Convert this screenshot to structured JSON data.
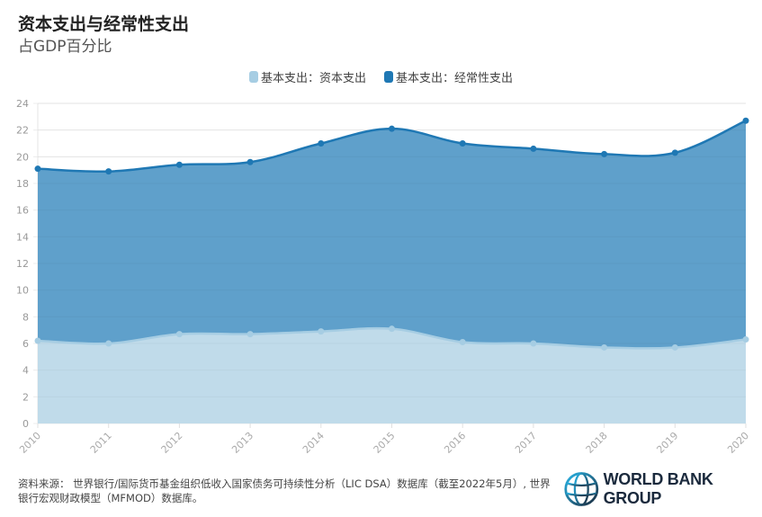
{
  "header": {
    "title": "资本支出与经常性支出",
    "subtitle": "占GDP百分比"
  },
  "legend": [
    {
      "label": "基本支出：资本支出",
      "color": "#a6cde3"
    },
    {
      "label": "基本支出：经常性支出",
      "color": "#1f78b4"
    }
  ],
  "footer": {
    "source_line1": "资料来源： 世界银行/国际货币基金组织低收入国家债务可持续性分析（LIC DSA）数据库（截至2022年5月）, 世界",
    "source_line2": "银行宏观财政模型（MFMOD）数据库。"
  },
  "logo": {
    "text": "WORLD BANK GROUP"
  },
  "chart_data": {
    "type": "area",
    "stacked": true,
    "title": "资本支出与经常性支出",
    "subtitle": "占GDP百分比",
    "xlabel": "",
    "ylabel": "",
    "x": [
      "2010",
      "2011",
      "2012",
      "2013",
      "2014",
      "2015",
      "2016",
      "2017",
      "2018",
      "2019",
      "2020"
    ],
    "series": [
      {
        "name": "基本支出：资本支出",
        "color": "#a6cde3",
        "values": [
          6.2,
          6.0,
          6.7,
          6.7,
          6.9,
          7.1,
          6.1,
          6.0,
          5.7,
          5.7,
          6.3
        ]
      },
      {
        "name": "基本支出：经常性支出",
        "color": "#1f78b4",
        "values": [
          12.9,
          12.9,
          12.7,
          12.9,
          14.1,
          15.0,
          14.9,
          14.6,
          14.5,
          14.6,
          16.4
        ]
      }
    ],
    "stack_totals": [
      19.1,
      18.9,
      19.4,
      19.6,
      21.0,
      22.1,
      21.0,
      20.6,
      20.2,
      20.3,
      22.7
    ],
    "ylim": [
      0,
      24
    ],
    "yticks": [
      0,
      2,
      4,
      6,
      8,
      10,
      12,
      14,
      16,
      18,
      20,
      22,
      24
    ],
    "grid": true,
    "legend_position": "top"
  }
}
